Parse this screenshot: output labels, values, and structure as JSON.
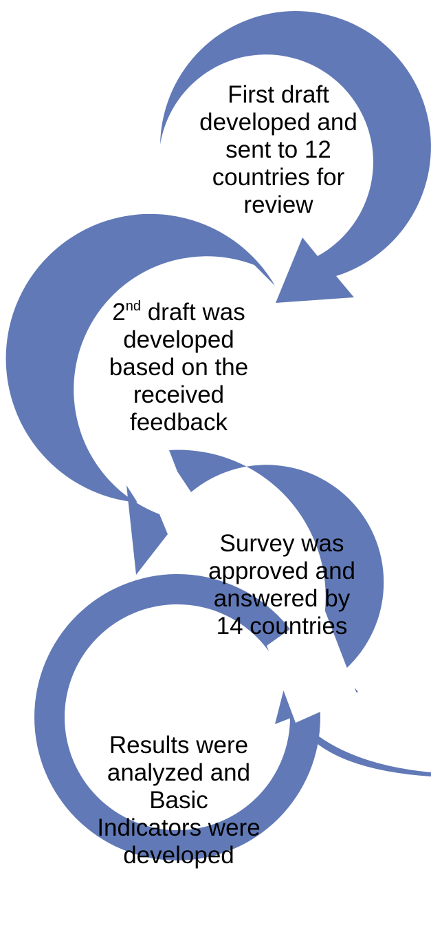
{
  "colors": {
    "arrow": "#6179b6",
    "text": "#000000",
    "background": "#ffffff"
  },
  "steps": [
    {
      "lines": [
        "First draft",
        "developed and",
        "sent to 12",
        "countries for",
        "review"
      ]
    },
    {
      "ordinal": "2",
      "ordinal_suffix": "nd",
      "first_rest": " draft was",
      "lines": [
        "developed",
        "based on the",
        "received",
        "feedback"
      ]
    },
    {
      "lines": [
        "Survey was",
        "approved and",
        "answered by",
        "14 countries"
      ]
    },
    {
      "lines": [
        "Results were",
        "analyzed and",
        "Basic",
        "Indicators were",
        "developed"
      ]
    }
  ]
}
